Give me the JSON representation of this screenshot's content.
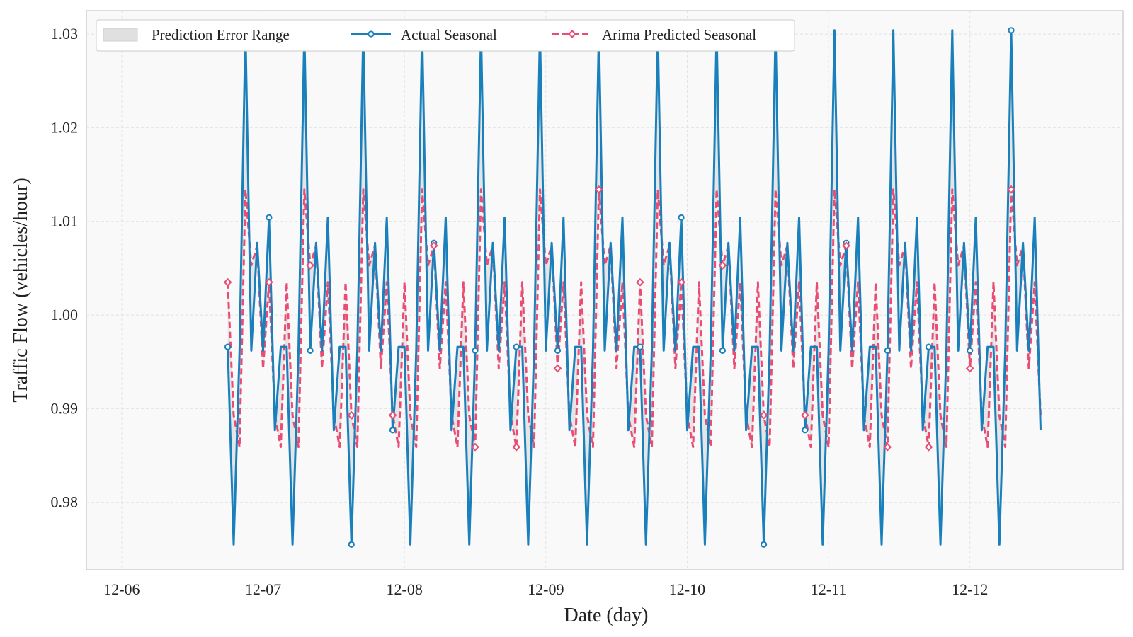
{
  "chart_data": {
    "type": "line",
    "title": "",
    "xlabel": "Date (day)",
    "ylabel": "Traffic Flow (vehicles/hour)",
    "x_tick_labels": [
      "12-06",
      "12-07",
      "12-08",
      "12-09",
      "12-10",
      "12-11",
      "12-12"
    ],
    "x_unit": "hours since 12-06 00:00",
    "x_range": [
      -6,
      170
    ],
    "y_tick_labels": [
      "0.98",
      "0.99",
      "1.00",
      "1.01",
      "1.02",
      "1.03"
    ],
    "ylim": [
      0.9728,
      1.0325
    ],
    "grid": true,
    "legend_position": "top-left",
    "legend": [
      {
        "label": "Prediction Error Range",
        "kind": "area"
      },
      {
        "label": "Actual Seasonal",
        "kind": "line"
      },
      {
        "label": "Arima Predicted Seasonal",
        "kind": "dashed"
      }
    ],
    "x_start": 18,
    "x_step": 1,
    "pattern_length": 10,
    "actual_pattern": [
      0.9966,
      0.9755,
      0.9962,
      1.0304,
      0.9962,
      1.0077,
      0.9962,
      1.0104,
      0.9877,
      0.9966
    ],
    "predicted_pattern": [
      1.0035,
      0.9893,
      0.9859,
      1.0134,
      1.0053,
      1.0074,
      0.9943,
      1.0035,
      0.9893,
      0.9859
    ],
    "num_points": 139,
    "marker_every": 7,
    "series": [
      {
        "name": "Actual Seasonal",
        "color": "#1a80bb",
        "style": "solid",
        "marker": "circle-hollow"
      },
      {
        "name": "Arima Predicted Seasonal",
        "color": "#ea4c74",
        "style": "dashed",
        "marker": "diamond-hollow"
      }
    ],
    "fill_color": "#d6d6d6"
  }
}
